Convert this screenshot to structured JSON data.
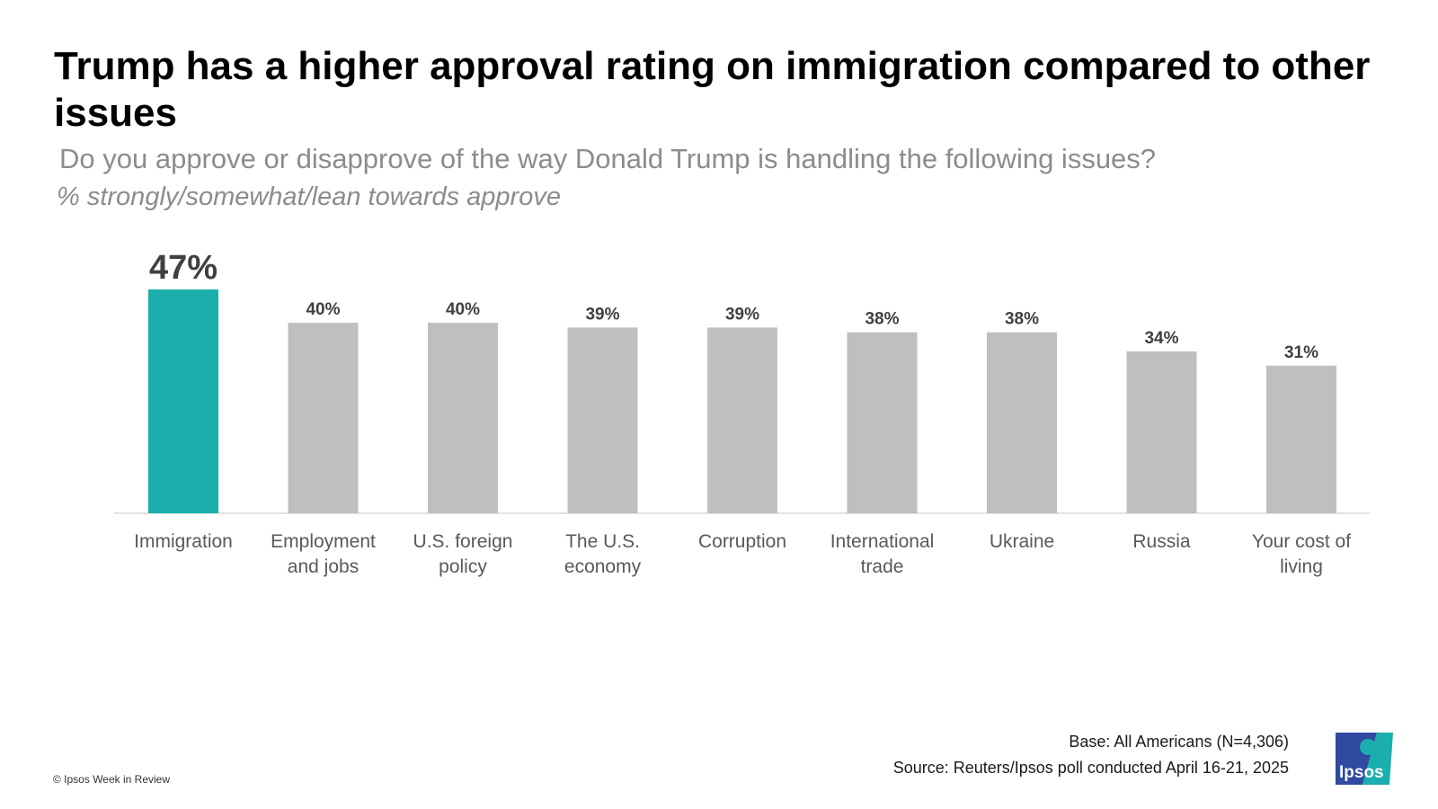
{
  "title": "Trump has a higher approval rating on immigration compared to other issues",
  "subtitle": "Do you approve or disapprove of the way Donald Trump is handling the following issues?",
  "measure": "% strongly/somewhat/lean towards approve",
  "footer": {
    "base": "Base: All Americans (N=4,306)",
    "source": "Source: Reuters/Ipsos poll conducted April 16-21, 2025",
    "copyright": "© Ipsos Week in Review",
    "logo_text": "Ipsos"
  },
  "colors": {
    "highlight": "#1aafac",
    "bar": "#bfbfbf",
    "axis": "#d9d9d9",
    "logo_blue": "#2f4aa0",
    "logo_teal": "#1aafac"
  },
  "chart_data": {
    "type": "bar",
    "categories": [
      [
        "Immigration"
      ],
      [
        "Employment",
        "and jobs"
      ],
      [
        "U.S. foreign",
        "policy"
      ],
      [
        "The U.S.",
        "economy"
      ],
      [
        "Corruption"
      ],
      [
        "International",
        "trade"
      ],
      [
        "Ukraine"
      ],
      [
        "Russia"
      ],
      [
        "Your cost of",
        "living"
      ]
    ],
    "values": [
      47,
      40,
      40,
      39,
      39,
      38,
      38,
      34,
      31
    ],
    "value_labels": [
      "47%",
      "40%",
      "40%",
      "39%",
      "39%",
      "38%",
      "38%",
      "34%",
      "31%"
    ],
    "highlight_index": 0,
    "ylim": [
      0,
      47
    ],
    "grid": false,
    "legend": "none"
  }
}
